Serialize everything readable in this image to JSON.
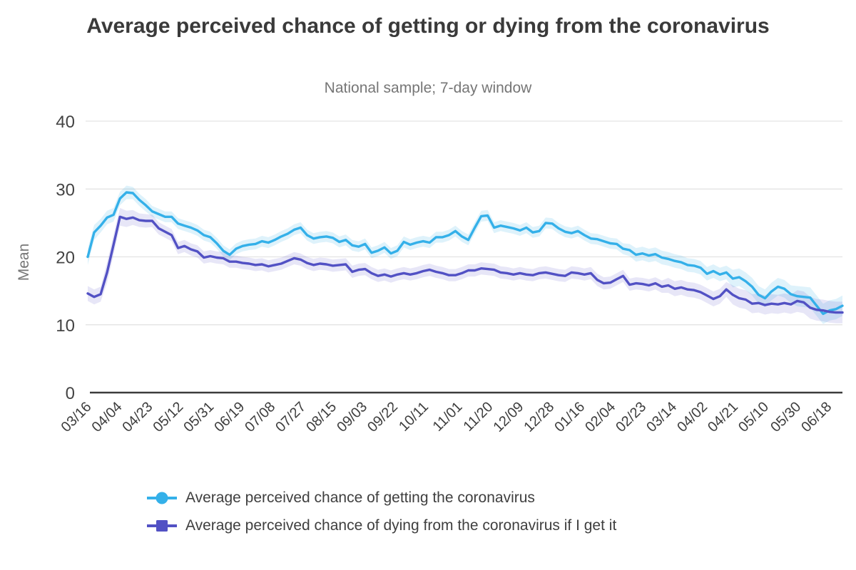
{
  "chart_data": {
    "type": "line",
    "title": "Average perceived chance of getting or dying from the coronavirus",
    "subtitle": "National sample; 7-day window",
    "ylabel": "Mean",
    "ylim": [
      0,
      40
    ],
    "yticks": [
      0,
      10,
      20,
      30,
      40
    ],
    "grid": true,
    "legend_position": "bottom",
    "x_step_days": 4,
    "xticks": [
      {
        "label": "03/16",
        "day": 0
      },
      {
        "label": "04/04",
        "day": 19
      },
      {
        "label": "04/23",
        "day": 38
      },
      {
        "label": "05/12",
        "day": 57
      },
      {
        "label": "05/31",
        "day": 76
      },
      {
        "label": "06/19",
        "day": 95
      },
      {
        "label": "07/08",
        "day": 114
      },
      {
        "label": "07/27",
        "day": 133
      },
      {
        "label": "08/15",
        "day": 152
      },
      {
        "label": "09/03",
        "day": 171
      },
      {
        "label": "09/22",
        "day": 190
      },
      {
        "label": "10/11",
        "day": 209
      },
      {
        "label": "11/01",
        "day": 230
      },
      {
        "label": "11/20",
        "day": 249
      },
      {
        "label": "12/09",
        "day": 268
      },
      {
        "label": "12/28",
        "day": 287
      },
      {
        "label": "01/16",
        "day": 306
      },
      {
        "label": "02/04",
        "day": 325
      },
      {
        "label": "02/23",
        "day": 344
      },
      {
        "label": "03/14",
        "day": 363
      },
      {
        "label": "04/02",
        "day": 382
      },
      {
        "label": "04/21",
        "day": 401
      },
      {
        "label": "05/10",
        "day": 420
      },
      {
        "label": "05/30",
        "day": 440
      },
      {
        "label": "06/18",
        "day": 459
      }
    ],
    "series": [
      {
        "name": "Average perceived chance of getting the coronavirus",
        "marker": "circle",
        "color": "#34B0E9",
        "band_opacity": 0.16,
        "values": [
          20.0,
          23.6,
          24.6,
          25.8,
          26.2,
          28.6,
          29.5,
          29.4,
          28.4,
          27.6,
          26.7,
          26.3,
          25.9,
          25.9,
          24.9,
          24.6,
          24.3,
          23.9,
          23.2,
          22.9,
          22.0,
          20.9,
          20.3,
          21.2,
          21.6,
          21.8,
          21.9,
          22.3,
          22.1,
          22.5,
          23.0,
          23.4,
          24.0,
          24.3,
          23.2,
          22.7,
          22.9,
          23.0,
          22.8,
          22.2,
          22.5,
          21.7,
          21.5,
          21.9,
          20.6,
          20.9,
          21.4,
          20.5,
          20.9,
          22.2,
          21.8,
          22.1,
          22.3,
          22.1,
          22.9,
          22.9,
          23.2,
          23.8,
          23.0,
          22.5,
          24.3,
          26.0,
          26.1,
          24.3,
          24.6,
          24.4,
          24.2,
          23.9,
          24.3,
          23.6,
          23.8,
          25.0,
          24.9,
          24.2,
          23.7,
          23.5,
          23.8,
          23.2,
          22.7,
          22.6,
          22.3,
          22.0,
          21.9,
          21.2,
          21.0,
          20.3,
          20.5,
          20.2,
          20.4,
          19.9,
          19.7,
          19.4,
          19.2,
          18.8,
          18.7,
          18.4,
          17.5,
          17.9,
          17.4,
          17.7,
          16.8,
          17.0,
          16.4,
          15.6,
          14.4,
          13.9,
          14.9,
          15.6,
          15.3,
          14.5,
          14.2,
          14.1,
          14.0,
          12.8,
          11.6,
          12.1,
          12.3,
          12.8
        ],
        "band": [
          1.2,
          1.1,
          1.0,
          1.0,
          1.0,
          1.0,
          1.0,
          0.9,
          0.9,
          0.9,
          0.8,
          0.8,
          0.8,
          0.8,
          0.8,
          0.8,
          0.8,
          0.8,
          0.8,
          0.8,
          0.8,
          0.8,
          0.8,
          0.8,
          0.8,
          0.8,
          0.8,
          0.8,
          0.8,
          0.8,
          0.8,
          0.8,
          0.8,
          0.8,
          0.8,
          0.8,
          0.8,
          0.8,
          0.8,
          0.8,
          0.8,
          0.8,
          0.8,
          0.8,
          0.8,
          0.8,
          0.8,
          0.8,
          0.8,
          0.8,
          0.8,
          0.8,
          0.8,
          0.8,
          0.8,
          0.8,
          0.8,
          0.8,
          0.8,
          0.8,
          0.8,
          0.8,
          0.8,
          0.8,
          0.8,
          0.8,
          0.8,
          0.8,
          0.8,
          0.8,
          0.8,
          0.8,
          0.8,
          0.8,
          0.8,
          0.8,
          0.8,
          0.8,
          0.8,
          0.8,
          0.8,
          0.8,
          0.8,
          0.8,
          0.9,
          1.0,
          1.0,
          1.0,
          1.0,
          1.0,
          1.0,
          1.0,
          1.0,
          1.0,
          1.0,
          1.0,
          1.0,
          1.0,
          1.0,
          1.0,
          1.3,
          1.3,
          1.3,
          1.3,
          1.3,
          1.3,
          1.3,
          1.3,
          1.3,
          1.3,
          1.5,
          1.5,
          1.5,
          1.5,
          1.5,
          1.5,
          1.5,
          1.5
        ]
      },
      {
        "name": "Average perceived chance of dying from the coronavirus if I get it",
        "marker": "square",
        "color": "#5251C4",
        "band_opacity": 0.14,
        "values": [
          14.6,
          14.1,
          14.5,
          17.7,
          21.8,
          25.9,
          25.6,
          25.8,
          25.4,
          25.3,
          25.3,
          24.2,
          23.7,
          23.2,
          21.3,
          21.6,
          21.1,
          20.8,
          19.9,
          20.1,
          19.9,
          19.8,
          19.3,
          19.3,
          19.1,
          19.0,
          18.8,
          18.9,
          18.6,
          18.8,
          19.0,
          19.4,
          19.8,
          19.6,
          19.1,
          18.8,
          19.0,
          18.9,
          18.7,
          18.8,
          18.9,
          17.8,
          18.1,
          18.2,
          17.6,
          17.2,
          17.4,
          17.1,
          17.4,
          17.6,
          17.4,
          17.6,
          17.9,
          18.1,
          17.8,
          17.6,
          17.3,
          17.3,
          17.6,
          18.0,
          18.0,
          18.3,
          18.2,
          18.1,
          17.7,
          17.6,
          17.4,
          17.6,
          17.4,
          17.3,
          17.6,
          17.7,
          17.5,
          17.3,
          17.2,
          17.7,
          17.6,
          17.4,
          17.6,
          16.6,
          16.1,
          16.2,
          16.7,
          17.2,
          15.9,
          16.1,
          16.0,
          15.8,
          16.1,
          15.6,
          15.8,
          15.3,
          15.5,
          15.2,
          15.1,
          14.8,
          14.3,
          13.8,
          14.2,
          15.2,
          14.4,
          13.9,
          13.7,
          13.1,
          13.2,
          12.9,
          13.1,
          13.0,
          13.2,
          13.0,
          13.5,
          13.3,
          12.5,
          12.2,
          12.1,
          11.9,
          11.8,
          11.8
        ],
        "band": [
          1.1,
          1.1,
          1.1,
          1.5,
          1.5,
          1.3,
          1.2,
          1.1,
          1.0,
          1.0,
          0.9,
          0.9,
          0.9,
          0.9,
          0.9,
          0.9,
          0.9,
          0.9,
          0.9,
          0.9,
          0.9,
          0.9,
          0.9,
          0.9,
          0.9,
          0.9,
          0.9,
          0.9,
          0.9,
          0.9,
          0.9,
          0.9,
          0.9,
          0.9,
          0.9,
          0.9,
          0.9,
          0.9,
          0.9,
          0.9,
          0.9,
          0.9,
          0.9,
          0.9,
          0.9,
          0.9,
          0.9,
          0.9,
          0.9,
          0.9,
          0.9,
          0.9,
          0.9,
          0.9,
          0.9,
          0.9,
          0.9,
          0.9,
          0.9,
          0.9,
          0.9,
          0.9,
          0.9,
          0.9,
          0.9,
          0.9,
          0.9,
          0.9,
          0.9,
          0.9,
          0.9,
          0.9,
          0.9,
          0.9,
          0.9,
          0.9,
          0.9,
          0.9,
          0.9,
          0.9,
          0.9,
          0.9,
          0.9,
          0.9,
          0.9,
          0.9,
          0.9,
          0.9,
          0.9,
          0.9,
          1.1,
          1.1,
          1.1,
          1.1,
          1.1,
          1.1,
          1.1,
          1.1,
          1.1,
          1.1,
          1.4,
          1.4,
          1.4,
          1.4,
          1.4,
          1.4,
          1.4,
          1.4,
          1.4,
          1.4,
          1.6,
          1.6,
          1.6,
          1.6,
          1.6,
          1.6,
          1.6,
          1.6
        ]
      }
    ],
    "colors": {
      "title": "#3a3a3a",
      "subtitle": "#767676",
      "axis_line": "#3b3b3b",
      "gridline": "#e3e3e3",
      "y_tick_text": "#444444",
      "x_tick_text": "#3d3d3d",
      "axis_label": "#767676"
    }
  }
}
